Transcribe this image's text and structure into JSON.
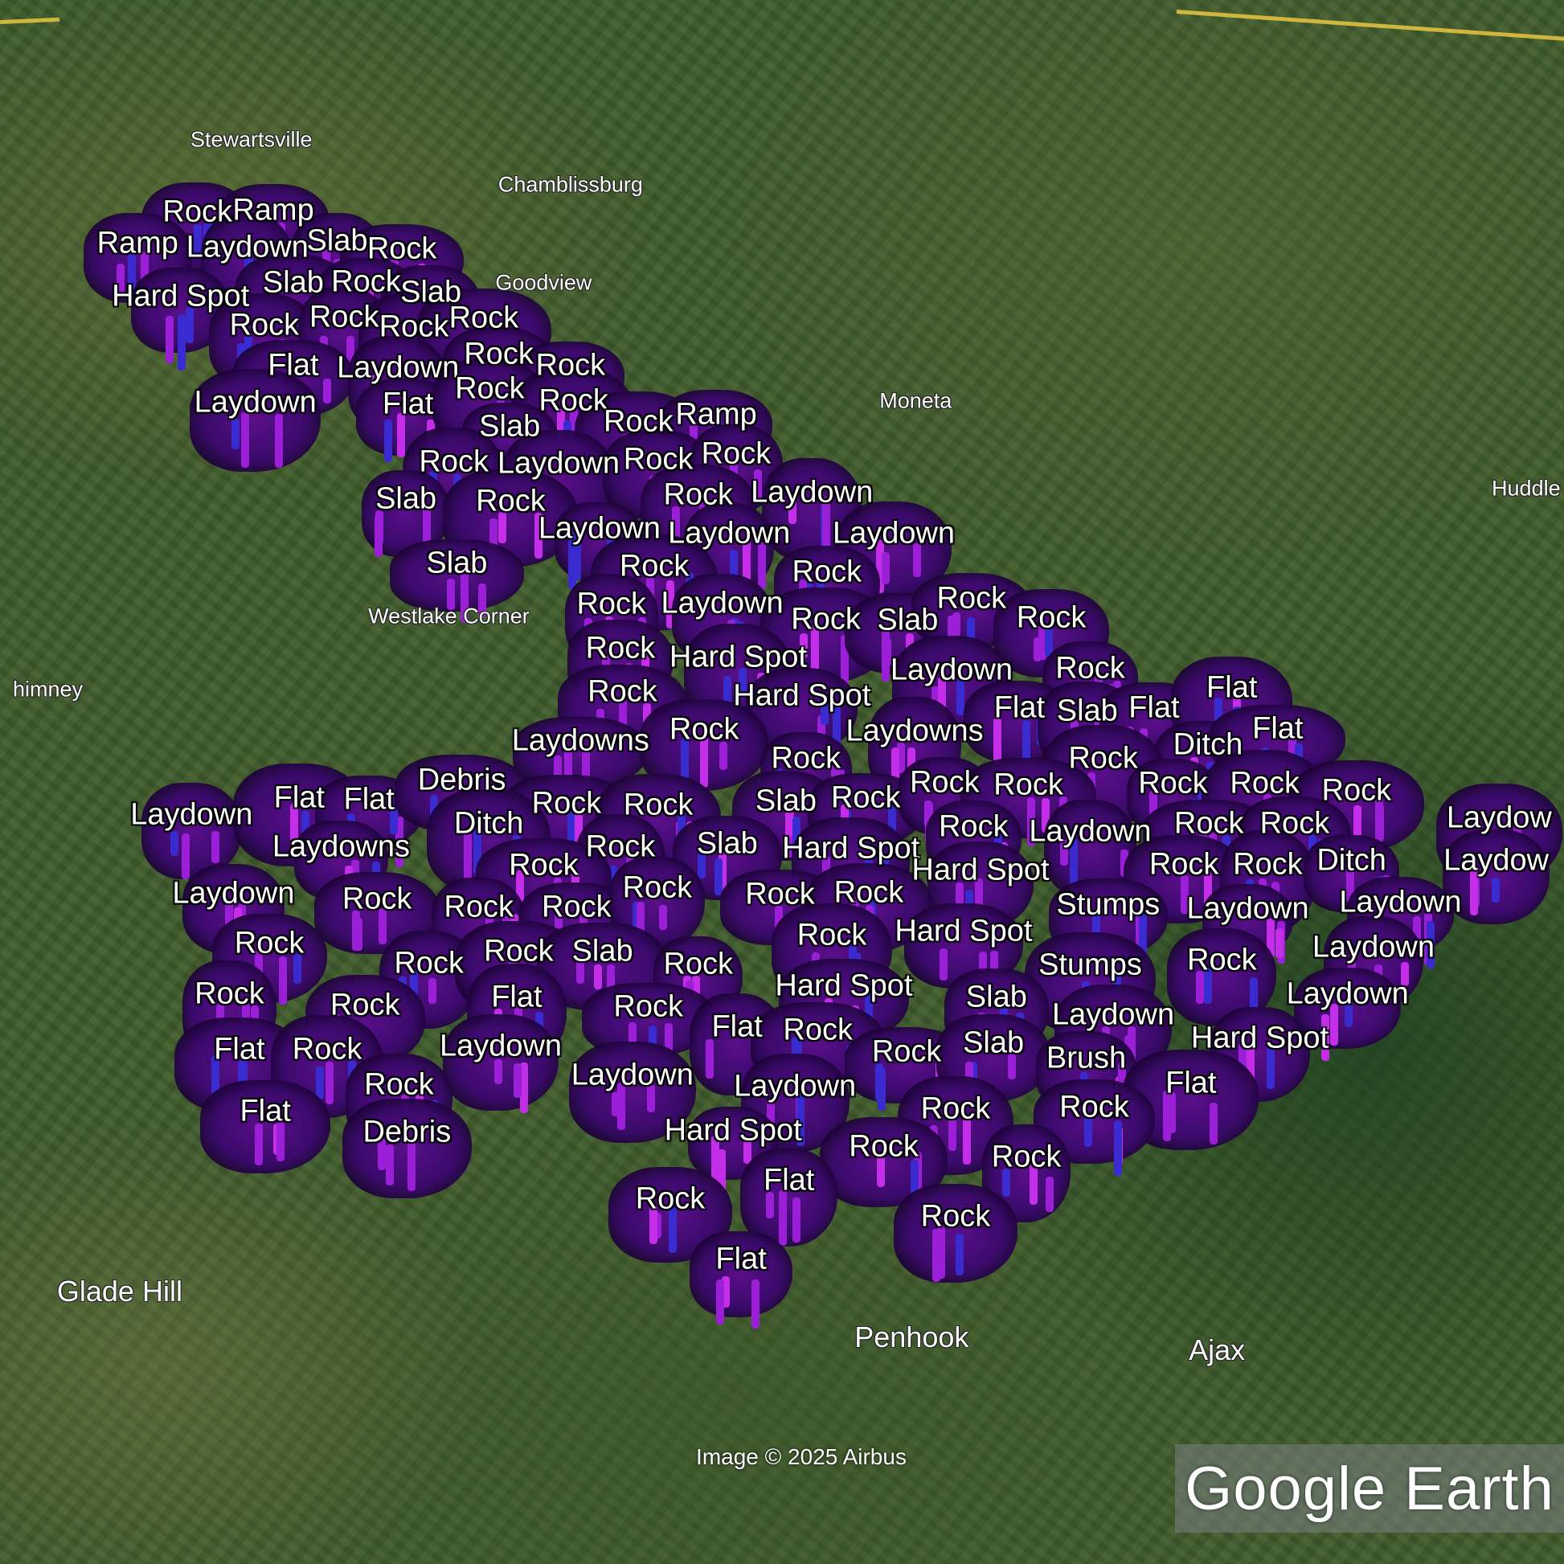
{
  "places": [
    "Stewartsville",
    "Chamblissburg",
    "Goodview",
    "Moneta",
    "Huddle",
    "Westlake Corner",
    "himney",
    "Glade Hill",
    "Penhook",
    "Ajax"
  ],
  "markers": [
    "Rock",
    "Ramp",
    "Ramp",
    "Laydown",
    "Slab",
    "Rock",
    "Hard Spot",
    "Slab",
    "Rock",
    "Slab",
    "Rock",
    "Rock",
    "Rock",
    "Rock",
    "Flat",
    "Laydown",
    "Rock",
    "Rock",
    "Laydown",
    "Flat",
    "Rock",
    "Rock",
    "Rock",
    "Ramp",
    "Slab",
    "Rock",
    "Laydown",
    "Rock",
    "Rock",
    "Slab",
    "Rock",
    "Rock",
    "Laydown",
    "Laydown",
    "Laydown",
    "Laydown",
    "Slab",
    "Rock",
    "Rock",
    "Rock",
    "Laydown",
    "Rock",
    "Slab",
    "Rock",
    "Rock",
    "Rock",
    "Hard Spot",
    "Laydown",
    "Rock",
    "Rock",
    "Hard Spot",
    "Flat",
    "Slab",
    "Flat",
    "Flat",
    "Laydowns",
    "Rock",
    "Laydowns",
    "Ditch",
    "Flat",
    "Rock",
    "Rock",
    "Laydown",
    "Flat",
    "Flat",
    "Debris",
    "Rock",
    "Rock",
    "Slab",
    "Rock",
    "Rock",
    "Rock",
    "Rock",
    "Rock",
    "Rock",
    "Laydow",
    "Laydowns",
    "Ditch",
    "Rock",
    "Slab",
    "Hard Spot",
    "Rock",
    "Laydown",
    "Rock",
    "Rock",
    "Laydow",
    "Rock",
    "Hard Spot",
    "Rock",
    "Rock",
    "Ditch",
    "Laydown",
    "Rock",
    "Rock",
    "Rock",
    "Rock",
    "Rock",
    "Rock",
    "Stumps",
    "Laydown",
    "Laydown",
    "Rock",
    "Rock",
    "Hard Spot",
    "Rock",
    "Rock",
    "Slab",
    "Rock",
    "Stumps",
    "Rock",
    "Laydown",
    "Rock",
    "Rock",
    "Flat",
    "Rock",
    "Hard Spot",
    "Slab",
    "Laydown",
    "Laydown",
    "Flat",
    "Rock",
    "Laydown",
    "Flat",
    "Rock",
    "Rock",
    "Slab",
    "Brush",
    "Hard Spot",
    "Rock",
    "Laydown",
    "Laydown",
    "Flat",
    "Flat",
    "Rock",
    "Rock",
    "Debris",
    "Hard Spot",
    "Rock",
    "Rock",
    "Flat",
    "Rock",
    "Rock",
    "Flat"
  ],
  "attribution": "Image © 2025 Airbus",
  "logo": "Google Earth",
  "colors": {
    "marker_purple": "#9b1fd6",
    "marker_blue": "#3a2bd0",
    "label_text": "#ffffff",
    "road": "#e8c542"
  }
}
